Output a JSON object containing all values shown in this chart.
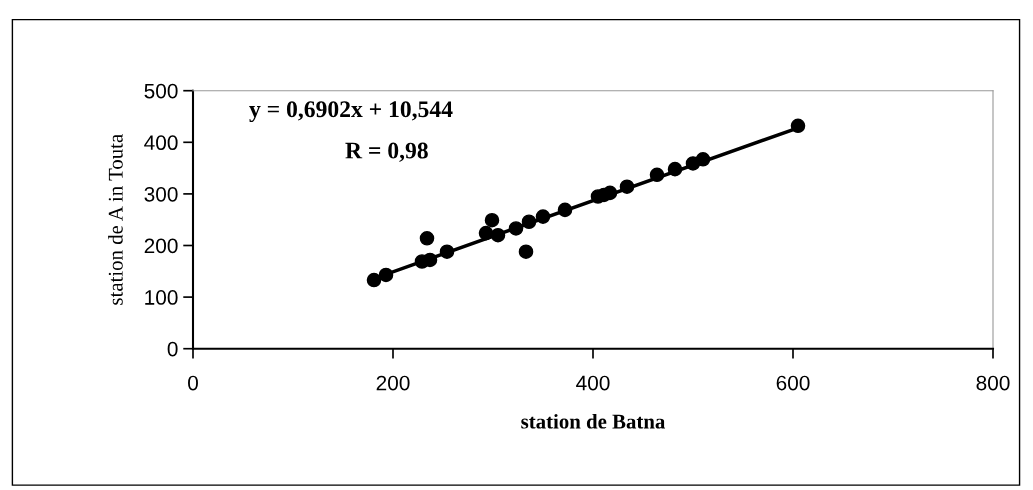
{
  "chart_data": {
    "type": "scatter",
    "xlabel": "station de Batna",
    "ylabel": "station de A in Touta",
    "annotations": [
      "y = 0,6902x + 10,544",
      "R = 0,98"
    ],
    "series": [
      {
        "color": "#000000",
        "marker": "circle",
        "x": [
          181,
          193,
          229,
          237,
          234,
          254,
          293,
          299,
          305,
          323,
          333,
          336,
          350,
          372,
          405,
          411,
          417,
          434,
          464,
          482,
          500,
          510,
          605
        ],
        "values": [
          133,
          143,
          169,
          172,
          214,
          188,
          224,
          249,
          220,
          233,
          188,
          246,
          256,
          269,
          295,
          298,
          302,
          314,
          337,
          348,
          359,
          367,
          432
        ]
      },
      {
        "type": "line",
        "color": "#000000",
        "marker": "none",
        "line_style": "solid",
        "x": [
          181,
          605
        ],
        "values": [
          136,
          428
        ]
      }
    ],
    "xlim": [
      0,
      800
    ],
    "xticks": [
      0,
      200,
      400,
      600,
      800
    ],
    "ylim": [
      0,
      500
    ],
    "yticks": [
      0,
      100,
      200,
      300,
      400,
      500
    ],
    "grid": false,
    "legend": false
  }
}
